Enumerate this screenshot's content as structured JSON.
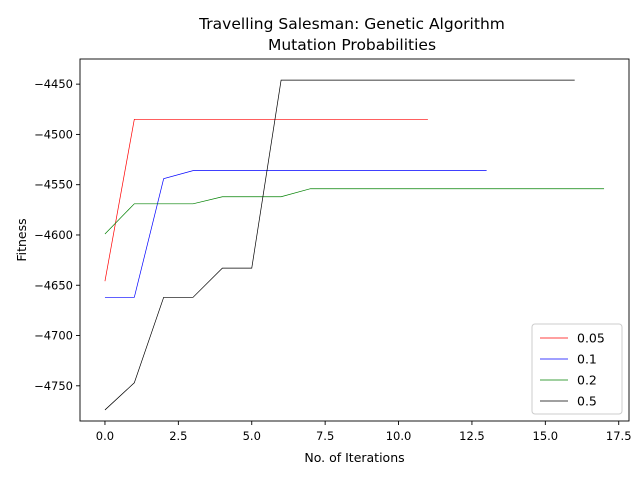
{
  "chart_data": {
    "type": "line",
    "title": [
      "Travelling Salesman: Genetic Algorithm",
      "Mutation Probabilities"
    ],
    "xlabel": "No. of Iterations",
    "ylabel": "Fitness",
    "xlim": [
      -0.85,
      17.85
    ],
    "ylim": [
      -4785,
      -4425
    ],
    "xticks": [
      0,
      2.5,
      5,
      7.5,
      10,
      12.5,
      15,
      17.5
    ],
    "xtick_labels": [
      "0.0",
      "2.5",
      "5.0",
      "7.5",
      "10.0",
      "12.5",
      "15.0",
      "17.5"
    ],
    "yticks": [
      -4750,
      -4700,
      -4650,
      -4600,
      -4550,
      -4500,
      -4450
    ],
    "ytick_labels": [
      "−4750",
      "−4700",
      "−4650",
      "−4600",
      "−4550",
      "−4500",
      "−4450"
    ],
    "grid": false,
    "legend_position": "lower-right",
    "series": [
      {
        "name": "0.05",
        "color": "#ff0000",
        "x": [
          0,
          1,
          2,
          3,
          4,
          5,
          6,
          7,
          8,
          9,
          10,
          11
        ],
        "y": [
          -4646,
          -4485,
          -4485,
          -4485,
          -4485,
          -4485,
          -4485,
          -4485,
          -4485,
          -4485,
          -4485,
          -4485
        ]
      },
      {
        "name": "0.1",
        "color": "#0000ff",
        "x": [
          0,
          1,
          2,
          3,
          4,
          5,
          6,
          7,
          8,
          9,
          10,
          11,
          12,
          13
        ],
        "y": [
          -4662,
          -4662,
          -4544,
          -4536,
          -4536,
          -4536,
          -4536,
          -4536,
          -4536,
          -4536,
          -4536,
          -4536,
          -4536,
          -4536
        ]
      },
      {
        "name": "0.2",
        "color": "#008000",
        "x": [
          0,
          1,
          2,
          3,
          4,
          5,
          6,
          7,
          8,
          9,
          10,
          11,
          12,
          13,
          14,
          15,
          16,
          17
        ],
        "y": [
          -4599,
          -4569,
          -4569,
          -4569,
          -4562,
          -4562,
          -4562,
          -4554,
          -4554,
          -4554,
          -4554,
          -4554,
          -4554,
          -4554,
          -4554,
          -4554,
          -4554,
          -4554
        ]
      },
      {
        "name": "0.5",
        "color": "#000000",
        "x": [
          0,
          1,
          2,
          3,
          4,
          5,
          6,
          7,
          8,
          9,
          10,
          11,
          12,
          13,
          14,
          15,
          16
        ],
        "y": [
          -4774,
          -4747,
          -4662,
          -4662,
          -4633,
          -4633,
          -4446,
          -4446,
          -4446,
          -4446,
          -4446,
          -4446,
          -4446,
          -4446,
          -4446,
          -4446,
          -4446
        ]
      }
    ]
  }
}
